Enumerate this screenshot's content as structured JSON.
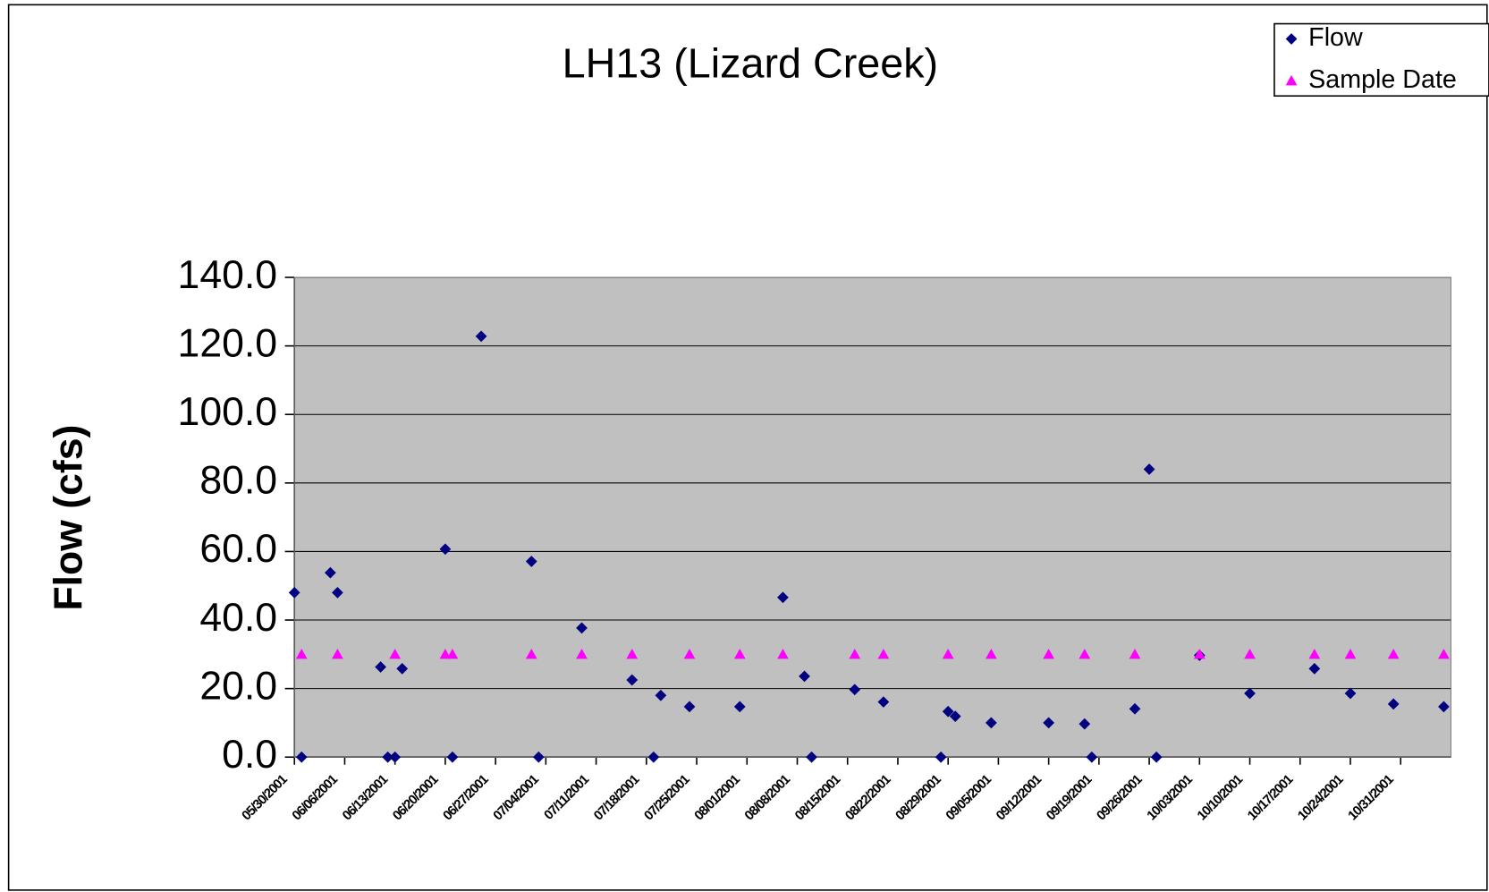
{
  "chart_data": {
    "type": "scatter",
    "title": "LH13 (Lizard Creek)",
    "y_label": "Flow (cfs)",
    "xlim": [
      "2001-05-30",
      "2001-11-07"
    ],
    "xticks": [
      {
        "value": "2001-05-30",
        "label": "05/30/2001"
      },
      {
        "value": "2001-06-06",
        "label": "06/06/2001"
      },
      {
        "value": "2001-06-13",
        "label": "06/13/2001"
      },
      {
        "value": "2001-06-20",
        "label": "06/20/2001"
      },
      {
        "value": "2001-06-27",
        "label": "06/27/2001"
      },
      {
        "value": "2001-07-04",
        "label": "07/04/2001"
      },
      {
        "value": "2001-07-11",
        "label": "07/11/2001"
      },
      {
        "value": "2001-07-18",
        "label": "07/18/2001"
      },
      {
        "value": "2001-07-25",
        "label": "07/25/2001"
      },
      {
        "value": "2001-08-01",
        "label": "08/01/2001"
      },
      {
        "value": "2001-08-08",
        "label": "08/08/2001"
      },
      {
        "value": "2001-08-15",
        "label": "08/15/2001"
      },
      {
        "value": "2001-08-22",
        "label": "08/22/2001"
      },
      {
        "value": "2001-08-29",
        "label": "08/29/2001"
      },
      {
        "value": "2001-09-05",
        "label": "09/05/2001"
      },
      {
        "value": "2001-09-12",
        "label": "09/12/2001"
      },
      {
        "value": "2001-09-19",
        "label": "09/19/2001"
      },
      {
        "value": "2001-09-26",
        "label": "09/26/2001"
      },
      {
        "value": "2001-10-03",
        "label": "10/03/2001"
      },
      {
        "value": "2001-10-10",
        "label": "10/10/2001"
      },
      {
        "value": "2001-10-17",
        "label": "10/17/2001"
      },
      {
        "value": "2001-10-24",
        "label": "10/24/2001"
      },
      {
        "value": "2001-10-31",
        "label": "10/31/2001"
      }
    ],
    "ylim": [
      0,
      140
    ],
    "yticks": [
      {
        "value": 0,
        "label": "0.0"
      },
      {
        "value": 20,
        "label": "20.0"
      },
      {
        "value": 40,
        "label": "40.0"
      },
      {
        "value": 60,
        "label": "60.0"
      },
      {
        "value": 80,
        "label": "80.0"
      },
      {
        "value": 100,
        "label": "100.0"
      },
      {
        "value": 120,
        "label": "120.0"
      },
      {
        "value": 140,
        "label": "140.0"
      }
    ],
    "grid": true,
    "legend": "top-right",
    "plot_background": "#c0c0c0",
    "series": [
      {
        "name": "Flow",
        "color": "#000080",
        "marker": "diamond",
        "x": [
          "2001-05-30",
          "2001-05-31",
          "2001-06-04",
          "2001-06-05",
          "2001-06-11",
          "2001-06-12",
          "2001-06-13",
          "2001-06-14",
          "2001-06-20",
          "2001-06-21",
          "2001-06-25",
          "2001-07-02",
          "2001-07-03",
          "2001-07-09",
          "2001-07-16",
          "2001-07-19",
          "2001-07-20",
          "2001-07-24",
          "2001-07-31",
          "2001-08-06",
          "2001-08-09",
          "2001-08-10",
          "2001-08-16",
          "2001-08-20",
          "2001-08-28",
          "2001-08-29",
          "2001-08-30",
          "2001-09-04",
          "2001-09-12",
          "2001-09-17",
          "2001-09-18",
          "2001-09-24",
          "2001-09-26",
          "2001-09-27",
          "2001-10-03",
          "2001-10-10",
          "2001-10-19",
          "2001-10-24",
          "2001-10-30",
          "2001-11-06"
        ],
        "values": [
          48.0,
          0,
          53.8,
          48.0,
          26.3,
          0,
          0,
          25.8,
          60.7,
          0,
          122.8,
          57.1,
          0,
          37.7,
          22.5,
          0,
          18.0,
          14.7,
          14.7,
          46.6,
          23.6,
          0,
          19.7,
          16.1,
          0,
          13.3,
          11.9,
          10.0,
          10.0,
          9.7,
          0,
          14.1,
          84.0,
          0,
          29.7,
          18.6,
          25.8,
          18.6,
          15.5,
          14.7
        ]
      },
      {
        "name": "Sample Date",
        "color": "#ff00ff",
        "marker": "triangle",
        "x": [
          "2001-05-31",
          "2001-06-05",
          "2001-06-13",
          "2001-06-20",
          "2001-06-21",
          "2001-07-02",
          "2001-07-09",
          "2001-07-16",
          "2001-07-24",
          "2001-07-31",
          "2001-08-06",
          "2001-08-16",
          "2001-08-20",
          "2001-08-29",
          "2001-09-04",
          "2001-09-12",
          "2001-09-17",
          "2001-09-24",
          "2001-10-03",
          "2001-10-10",
          "2001-10-19",
          "2001-10-24",
          "2001-10-30",
          "2001-11-06"
        ],
        "values": [
          30,
          30,
          30,
          30,
          30,
          30,
          30,
          30,
          30,
          30,
          30,
          30,
          30,
          30,
          30,
          30,
          30,
          30,
          30,
          30,
          30,
          30,
          30,
          30
        ]
      }
    ]
  }
}
